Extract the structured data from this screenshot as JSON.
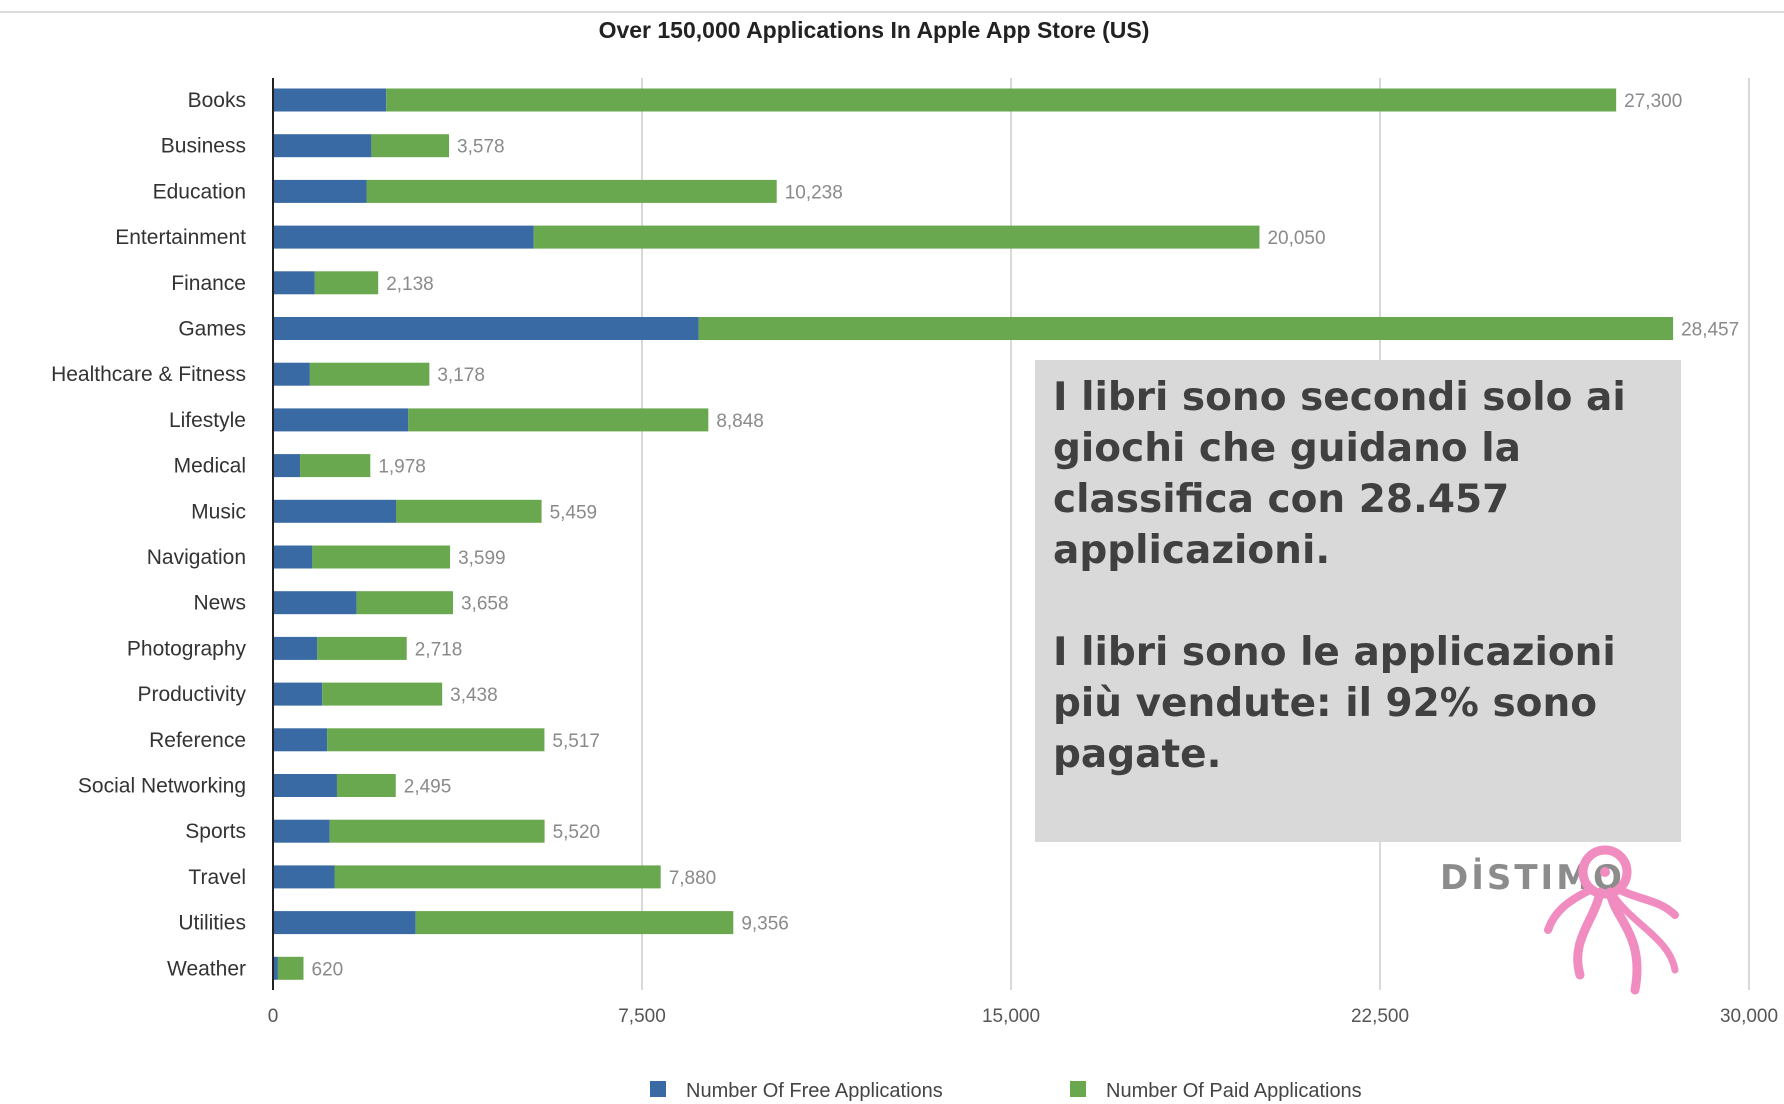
{
  "chart_data": {
    "type": "bar",
    "orientation": "horizontal",
    "stacked": true,
    "title": "Over 150,000 Applications In Apple App Store (US)",
    "categories": [
      "Books",
      "Business",
      "Education",
      "Entertainment",
      "Finance",
      "Games",
      "Healthcare & Fitness",
      "Lifestyle",
      "Medical",
      "Music",
      "Navigation",
      "News",
      "Photography",
      "Productivity",
      "Reference",
      "Social Networking",
      "Sports",
      "Travel",
      "Utilities",
      "Weather"
    ],
    "series": [
      {
        "name": "Number Of Free Applications",
        "color": "#3a6aa3",
        "values": [
          2300,
          2000,
          1900,
          5300,
          850,
          8650,
          750,
          2750,
          550,
          2500,
          800,
          1700,
          900,
          1000,
          1100,
          1300,
          1150,
          1250,
          2900,
          100
        ]
      },
      {
        "name": "Number Of Paid Applications",
        "color": "#6aa84f",
        "values": [
          25000,
          1578,
          8338,
          14750,
          1288,
          19807,
          2428,
          6098,
          1428,
          2959,
          2799,
          1958,
          1818,
          2438,
          4417,
          1195,
          4370,
          6630,
          6456,
          520
        ]
      }
    ],
    "totals": [
      27300,
      3578,
      10238,
      20050,
      2138,
      28457,
      3178,
      8848,
      1978,
      5459,
      3599,
      3658,
      2718,
      3438,
      5517,
      2495,
      5520,
      7880,
      9356,
      620
    ],
    "total_labels": [
      "27,300",
      "3,578",
      "10,238",
      "20,050",
      "2,138",
      "28,457",
      "3,178",
      "8,848",
      "1,978",
      "5,459",
      "3,599",
      "3,658",
      "2,718",
      "3,438",
      "5,517",
      "2,495",
      "5,520",
      "7,880",
      "9,356",
      "620"
    ],
    "xlim": [
      0,
      30000
    ],
    "xticks": [
      0,
      7500,
      15000,
      22500,
      30000
    ],
    "xtick_labels": [
      "0",
      "7,500",
      "15,000",
      "22,500",
      "30,000"
    ],
    "grid": "vertical",
    "legend_position": "bottom"
  },
  "callout": {
    "line1": "I libri sono secondi solo ai giochi che guidano la classifica con 28.457 applicazioni.",
    "line2": "I libri sono le applicazioni più vendute: il 92% sono pagate."
  },
  "logo": {
    "text": "DİSTIMO",
    "color": "#f08cbf"
  }
}
